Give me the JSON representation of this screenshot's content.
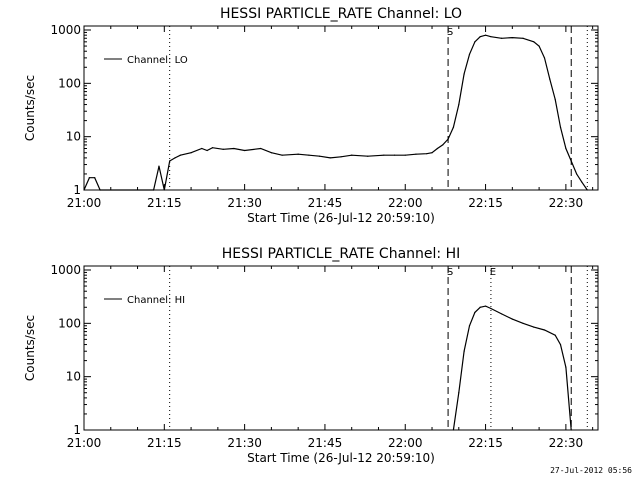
{
  "footer_timestamp": "27-Jul-2012 05:56",
  "chart_data": [
    {
      "type": "line",
      "title": "HESSI PARTICLE_RATE Channel: LO",
      "xlabel": "Start Time (26-Jul-12 20:59:10)",
      "ylabel": "Counts/sec",
      "y_scale": "log",
      "ylim": [
        1,
        1000
      ],
      "xlim": [
        "21:00",
        "22:36"
      ],
      "x_ticks": [
        "21:00",
        "21:15",
        "21:30",
        "21:45",
        "22:00",
        "22:15",
        "22:30"
      ],
      "y_ticks": [
        "1",
        "10",
        "100",
        "1000"
      ],
      "legend": {
        "position": "top-left",
        "entries": [
          "Channel: LO"
        ]
      },
      "markers": [
        {
          "time": "22:08",
          "style": "dashed",
          "label": "S"
        },
        {
          "time": "22:31",
          "style": "dashed",
          "label": ""
        },
        {
          "time": "21:16",
          "style": "dotted",
          "label": ""
        },
        {
          "time": "22:34",
          "style": "dotted",
          "label": ""
        }
      ],
      "series": [
        {
          "x": [
            "21:00",
            "21:01",
            "21:02",
            "21:03",
            "21:13",
            "21:14",
            "21:15",
            "21:16",
            "21:17",
            "21:18",
            "21:20",
            "21:22",
            "21:23",
            "21:24",
            "21:26",
            "21:28",
            "21:30",
            "21:33",
            "21:35",
            "21:37",
            "21:40",
            "21:42",
            "21:44",
            "21:46",
            "21:48",
            "21:50",
            "21:53",
            "21:56",
            "21:58",
            "22:00",
            "22:02",
            "22:04",
            "22:05",
            "22:06",
            "22:07",
            "22:08",
            "22:09",
            "22:10",
            "22:11",
            "22:12",
            "22:13",
            "22:14",
            "22:15",
            "22:16",
            "22:18",
            "22:20",
            "22:22",
            "22:24",
            "22:25",
            "22:26",
            "22:27",
            "22:28",
            "22:29",
            "22:30",
            "22:31",
            "22:32",
            "22:33",
            "22:34"
          ],
          "values": [
            1,
            1.7,
            1.7,
            1,
            1,
            2.8,
            1,
            3.5,
            4,
            4.5,
            5,
            6,
            5.5,
            6.2,
            5.8,
            6,
            5.5,
            6,
            5,
            4.5,
            4.7,
            4.5,
            4.3,
            4,
            4.2,
            4.5,
            4.3,
            4.5,
            4.5,
            4.5,
            4.7,
            4.8,
            5,
            6,
            7,
            9,
            15,
            40,
            150,
            350,
            600,
            750,
            800,
            750,
            700,
            720,
            700,
            600,
            500,
            300,
            120,
            50,
            15,
            6,
            3.5,
            2,
            1.4,
            1
          ]
        }
      ]
    },
    {
      "type": "line",
      "title": "HESSI PARTICLE_RATE Channel: HI",
      "xlabel": "Start Time (26-Jul-12 20:59:10)",
      "ylabel": "Counts/sec",
      "y_scale": "log",
      "ylim": [
        1,
        1000
      ],
      "xlim": [
        "21:00",
        "22:36"
      ],
      "x_ticks": [
        "21:00",
        "21:15",
        "21:30",
        "21:45",
        "22:00",
        "22:15",
        "22:30"
      ],
      "y_ticks": [
        "1",
        "10",
        "100",
        "1000"
      ],
      "legend": {
        "position": "top-left",
        "entries": [
          "Channel: HI"
        ]
      },
      "markers": [
        {
          "time": "22:08",
          "style": "dashed",
          "label": "S"
        },
        {
          "time": "22:16",
          "style": "dotted",
          "label": "E"
        },
        {
          "time": "22:31",
          "style": "dashed",
          "label": ""
        },
        {
          "time": "21:16",
          "style": "dotted",
          "label": ""
        },
        {
          "time": "22:34",
          "style": "dotted",
          "label": ""
        }
      ],
      "series": [
        {
          "x": [
            "22:09",
            "22:10",
            "22:11",
            "22:12",
            "22:13",
            "22:14",
            "22:15",
            "22:16",
            "22:18",
            "22:20",
            "22:22",
            "22:24",
            "22:26",
            "22:28",
            "22:29",
            "22:30",
            "22:31"
          ],
          "values": [
            1,
            5,
            30,
            90,
            160,
            200,
            210,
            190,
            150,
            120,
            100,
            85,
            75,
            60,
            40,
            15,
            1
          ]
        }
      ]
    }
  ]
}
